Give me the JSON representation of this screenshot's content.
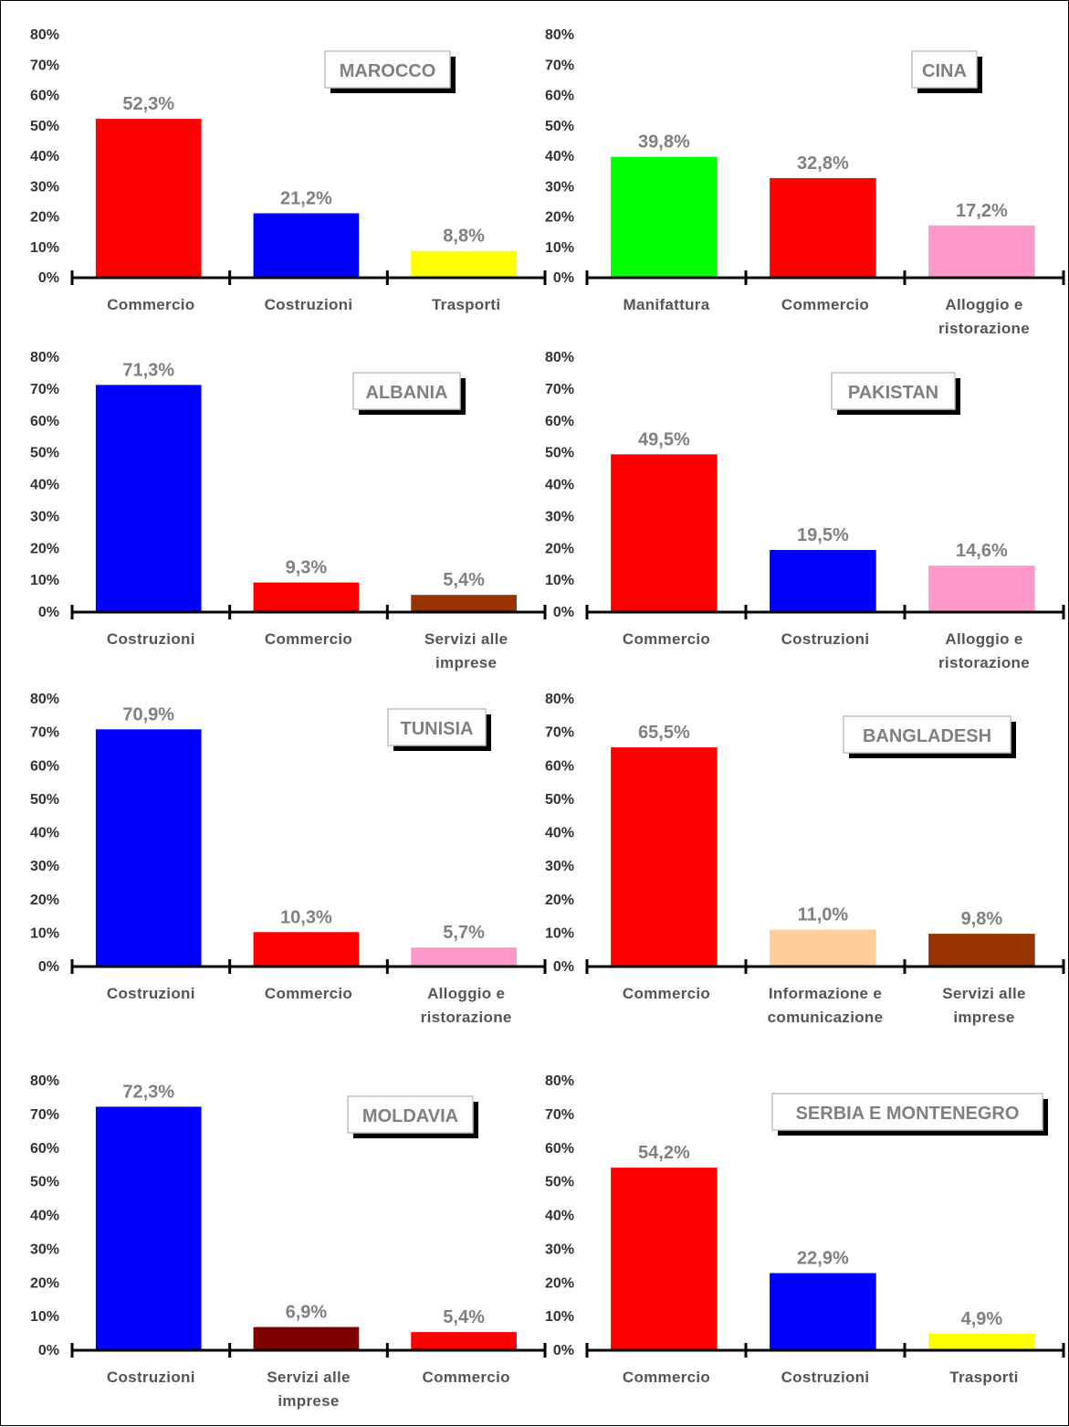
{
  "chart_data": [
    {
      "type": "bar",
      "title": "MAROCCO",
      "categories": [
        [
          "Commercio"
        ],
        [
          "Costruzioni"
        ],
        [
          "Trasporti"
        ]
      ],
      "values": [
        52.3,
        21.2,
        8.8
      ],
      "value_labels": [
        "52,3%",
        "21,2%",
        "8,8%"
      ],
      "colors": [
        "#ff0000",
        "#0000ff",
        "#ffff00"
      ],
      "yticks": [
        "0%",
        "10%",
        "20%",
        "30%",
        "40%",
        "50%",
        "60%",
        "70%",
        "80%"
      ],
      "ylim": [
        0,
        80
      ],
      "grid": false,
      "legend": "none"
    },
    {
      "type": "bar",
      "title": "CINA",
      "categories": [
        [
          "Manifattura"
        ],
        [
          "Commercio"
        ],
        [
          "Alloggio e",
          "ristorazione"
        ]
      ],
      "values": [
        39.8,
        32.8,
        17.2
      ],
      "value_labels": [
        "39,8%",
        "32,8%",
        "17,2%"
      ],
      "colors": [
        "#00ff00",
        "#ff0000",
        "#ff99cc"
      ],
      "yticks": [
        "0%",
        "10%",
        "20%",
        "30%",
        "40%",
        "50%",
        "60%",
        "70%",
        "80%"
      ],
      "ylim": [
        0,
        80
      ],
      "grid": false,
      "legend": "none"
    },
    {
      "type": "bar",
      "title": "ALBANIA",
      "categories": [
        [
          "Costruzioni"
        ],
        [
          "Commercio"
        ],
        [
          "Servizi alle",
          "imprese"
        ]
      ],
      "values": [
        71.3,
        9.3,
        5.4
      ],
      "value_labels": [
        "71,3%",
        "9,3%",
        "5,4%"
      ],
      "colors": [
        "#0000ff",
        "#ff0000",
        "#993300"
      ],
      "yticks": [
        "0%",
        "10%",
        "20%",
        "30%",
        "40%",
        "50%",
        "60%",
        "70%",
        "80%"
      ],
      "ylim": [
        0,
        80
      ],
      "grid": false,
      "legend": "none"
    },
    {
      "type": "bar",
      "title": "PAKISTAN",
      "categories": [
        [
          "Commercio"
        ],
        [
          "Costruzioni"
        ],
        [
          "Alloggio e",
          "ristorazione"
        ]
      ],
      "values": [
        49.5,
        19.5,
        14.6
      ],
      "value_labels": [
        "49,5%",
        "19,5%",
        "14,6%"
      ],
      "colors": [
        "#ff0000",
        "#0000ff",
        "#ff99cc"
      ],
      "yticks": [
        "0%",
        "10%",
        "20%",
        "30%",
        "40%",
        "50%",
        "60%",
        "70%",
        "80%"
      ],
      "ylim": [
        0,
        80
      ],
      "grid": false,
      "legend": "none"
    },
    {
      "type": "bar",
      "title": "TUNISIA",
      "categories": [
        [
          "Costruzioni"
        ],
        [
          "Commercio"
        ],
        [
          "Alloggio e",
          "ristorazione"
        ]
      ],
      "values": [
        70.9,
        10.3,
        5.7
      ],
      "value_labels": [
        "70,9%",
        "10,3%",
        "5,7%"
      ],
      "colors": [
        "#0000ff",
        "#ff0000",
        "#ff99cc"
      ],
      "yticks": [
        "0%",
        "10%",
        "20%",
        "30%",
        "40%",
        "50%",
        "60%",
        "70%",
        "80%"
      ],
      "ylim": [
        0,
        80
      ],
      "grid": false,
      "legend": "none"
    },
    {
      "type": "bar",
      "title": "BANGLADESH",
      "categories": [
        [
          "Commercio"
        ],
        [
          "Informazione e",
          "comunicazione"
        ],
        [
          "Servizi alle",
          "imprese"
        ]
      ],
      "values": [
        65.5,
        11.0,
        9.8
      ],
      "value_labels": [
        "65,5%",
        "11,0%",
        "9,8%"
      ],
      "colors": [
        "#ff0000",
        "#ffcc99",
        "#993300"
      ],
      "yticks": [
        "0%",
        "10%",
        "20%",
        "30%",
        "40%",
        "50%",
        "60%",
        "70%",
        "80%"
      ],
      "ylim": [
        0,
        80
      ],
      "grid": false,
      "legend": "none"
    },
    {
      "type": "bar",
      "title": "MOLDAVIA",
      "categories": [
        [
          "Costruzioni"
        ],
        [
          "Servizi alle",
          "imprese"
        ],
        [
          "Commercio"
        ]
      ],
      "values": [
        72.3,
        6.9,
        5.4
      ],
      "value_labels": [
        "72,3%",
        "6,9%",
        "5,4%"
      ],
      "colors": [
        "#0000ff",
        "#800000",
        "#ff0000"
      ],
      "yticks": [
        "0%",
        "10%",
        "20%",
        "30%",
        "40%",
        "50%",
        "60%",
        "70%",
        "80%"
      ],
      "ylim": [
        0,
        80
      ],
      "grid": false,
      "legend": "none"
    },
    {
      "type": "bar",
      "title": "SERBIA E MONTENEGRO",
      "categories": [
        [
          "Commercio"
        ],
        [
          "Costruzioni"
        ],
        [
          "Trasporti"
        ]
      ],
      "values": [
        54.2,
        22.9,
        4.9
      ],
      "value_labels": [
        "54,2%",
        "22,9%",
        "4,9%"
      ],
      "colors": [
        "#ff0000",
        "#0000ff",
        "#ffff00"
      ],
      "yticks": [
        "0%",
        "10%",
        "20%",
        "30%",
        "40%",
        "50%",
        "60%",
        "70%",
        "80%"
      ],
      "ylim": [
        0,
        80
      ],
      "grid": false,
      "legend": "none"
    }
  ]
}
